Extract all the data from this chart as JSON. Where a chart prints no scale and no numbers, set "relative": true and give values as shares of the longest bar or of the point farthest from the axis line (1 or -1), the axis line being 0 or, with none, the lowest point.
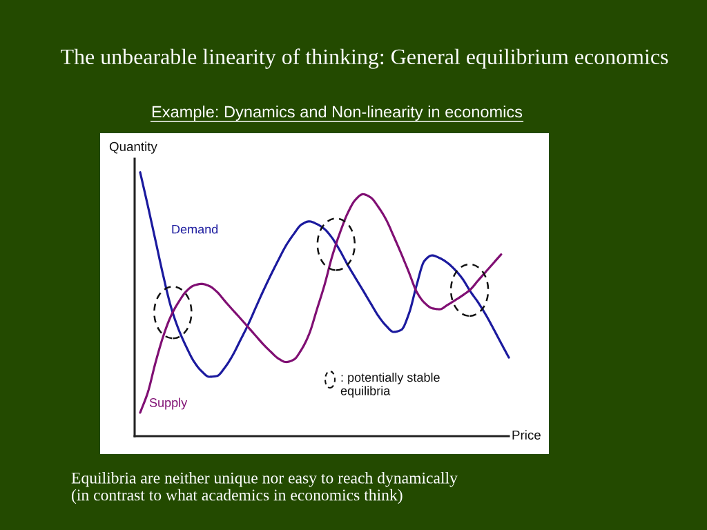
{
  "chart_data": {
    "type": "line",
    "title": "The unbearable linearity of thinking: General equilibrium economics",
    "subtitle": "Example: Dynamics and Non-linearity in economics",
    "xlabel": "Price",
    "ylabel": "Quantity",
    "relative": true,
    "categories": [
      null,
      null,
      null,
      null,
      null,
      null,
      null,
      null,
      null,
      null,
      null,
      null,
      null,
      null,
      null,
      null,
      null,
      null,
      null,
      null,
      null,
      null,
      null,
      null,
      null,
      null,
      null,
      null,
      null,
      null,
      null,
      null,
      null,
      null,
      null,
      null,
      null,
      null,
      null,
      null,
      null,
      null,
      null,
      null,
      null,
      null,
      null,
      null,
      null
    ],
    "series": [
      {
        "name": "Demand",
        "color": "#1b1a9e",
        "values": [
          1.0,
          0.873,
          0.741,
          0.609,
          0.491,
          0.405,
          0.339,
          0.283,
          0.246,
          0.225,
          0.228,
          0.259,
          0.304,
          0.361,
          0.419,
          0.484,
          0.549,
          0.61,
          0.668,
          0.723,
          0.766,
          0.802,
          0.814,
          0.804,
          0.785,
          0.751,
          0.704,
          0.65,
          0.601,
          0.553,
          0.504,
          0.456,
          0.419,
          0.395,
          0.403,
          0.465,
          0.573,
          0.664,
          0.685,
          0.675,
          0.657,
          0.63,
          0.595,
          0.548,
          0.507,
          0.46,
          0.407,
          0.352,
          0.298
        ]
      },
      {
        "name": "Supply",
        "color": "#800f73",
        "values": [
          0.089,
          0.166,
          0.279,
          0.378,
          0.455,
          0.508,
          0.549,
          0.571,
          0.577,
          0.569,
          0.547,
          0.513,
          0.48,
          0.448,
          0.415,
          0.382,
          0.349,
          0.32,
          0.294,
          0.281,
          0.29,
          0.328,
          0.387,
          0.479,
          0.573,
          0.682,
          0.77,
          0.844,
          0.895,
          0.917,
          0.905,
          0.869,
          0.822,
          0.758,
          0.691,
          0.62,
          0.547,
          0.506,
          0.485,
          0.481,
          0.497,
          0.515,
          0.534,
          0.556,
          0.59,
          0.623,
          0.656,
          0.689,
          null
        ]
      }
    ],
    "annotations": [
      ": potentially stable\nequilibria",
      "Equilibria are neither unique nor easy to reach dynamically\n(in contrast to what academics in economics think)"
    ],
    "legend": false,
    "grid": false,
    "marker": "none",
    "line_style": "solid"
  }
}
